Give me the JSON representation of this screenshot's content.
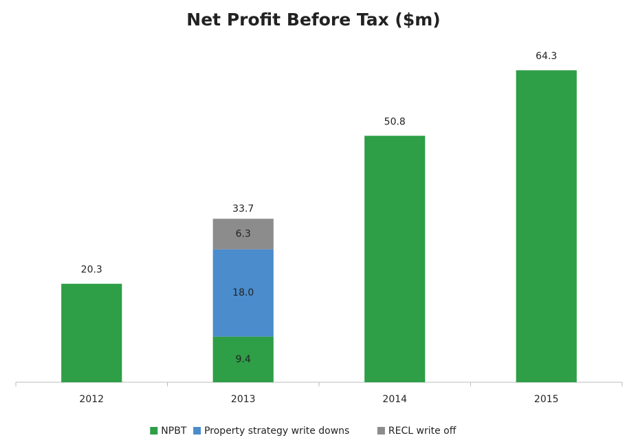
{
  "chart_data": {
    "type": "stacked_bar",
    "title": "Net Profit Before Tax ($m)",
    "categories": [
      "2012",
      "2013",
      "2014",
      "2015"
    ],
    "series": [
      {
        "name": "NPBT",
        "color": "#2e9e47",
        "values": [
          20.3,
          9.4,
          50.8,
          64.3
        ]
      },
      {
        "name": "Property strategy write downs",
        "color": "#4a8ccc",
        "values": [
          null,
          18.0,
          null,
          null
        ],
        "value_labels": [
          null,
          "18.0",
          null,
          null
        ]
      },
      {
        "name": "RECL write off",
        "color": "#8c8c8c",
        "values": [
          null,
          6.3,
          null,
          null
        ]
      }
    ],
    "totals": [
      null,
      33.7,
      null,
      null
    ],
    "ylim": [
      0,
      70
    ],
    "legend": "bottom"
  }
}
